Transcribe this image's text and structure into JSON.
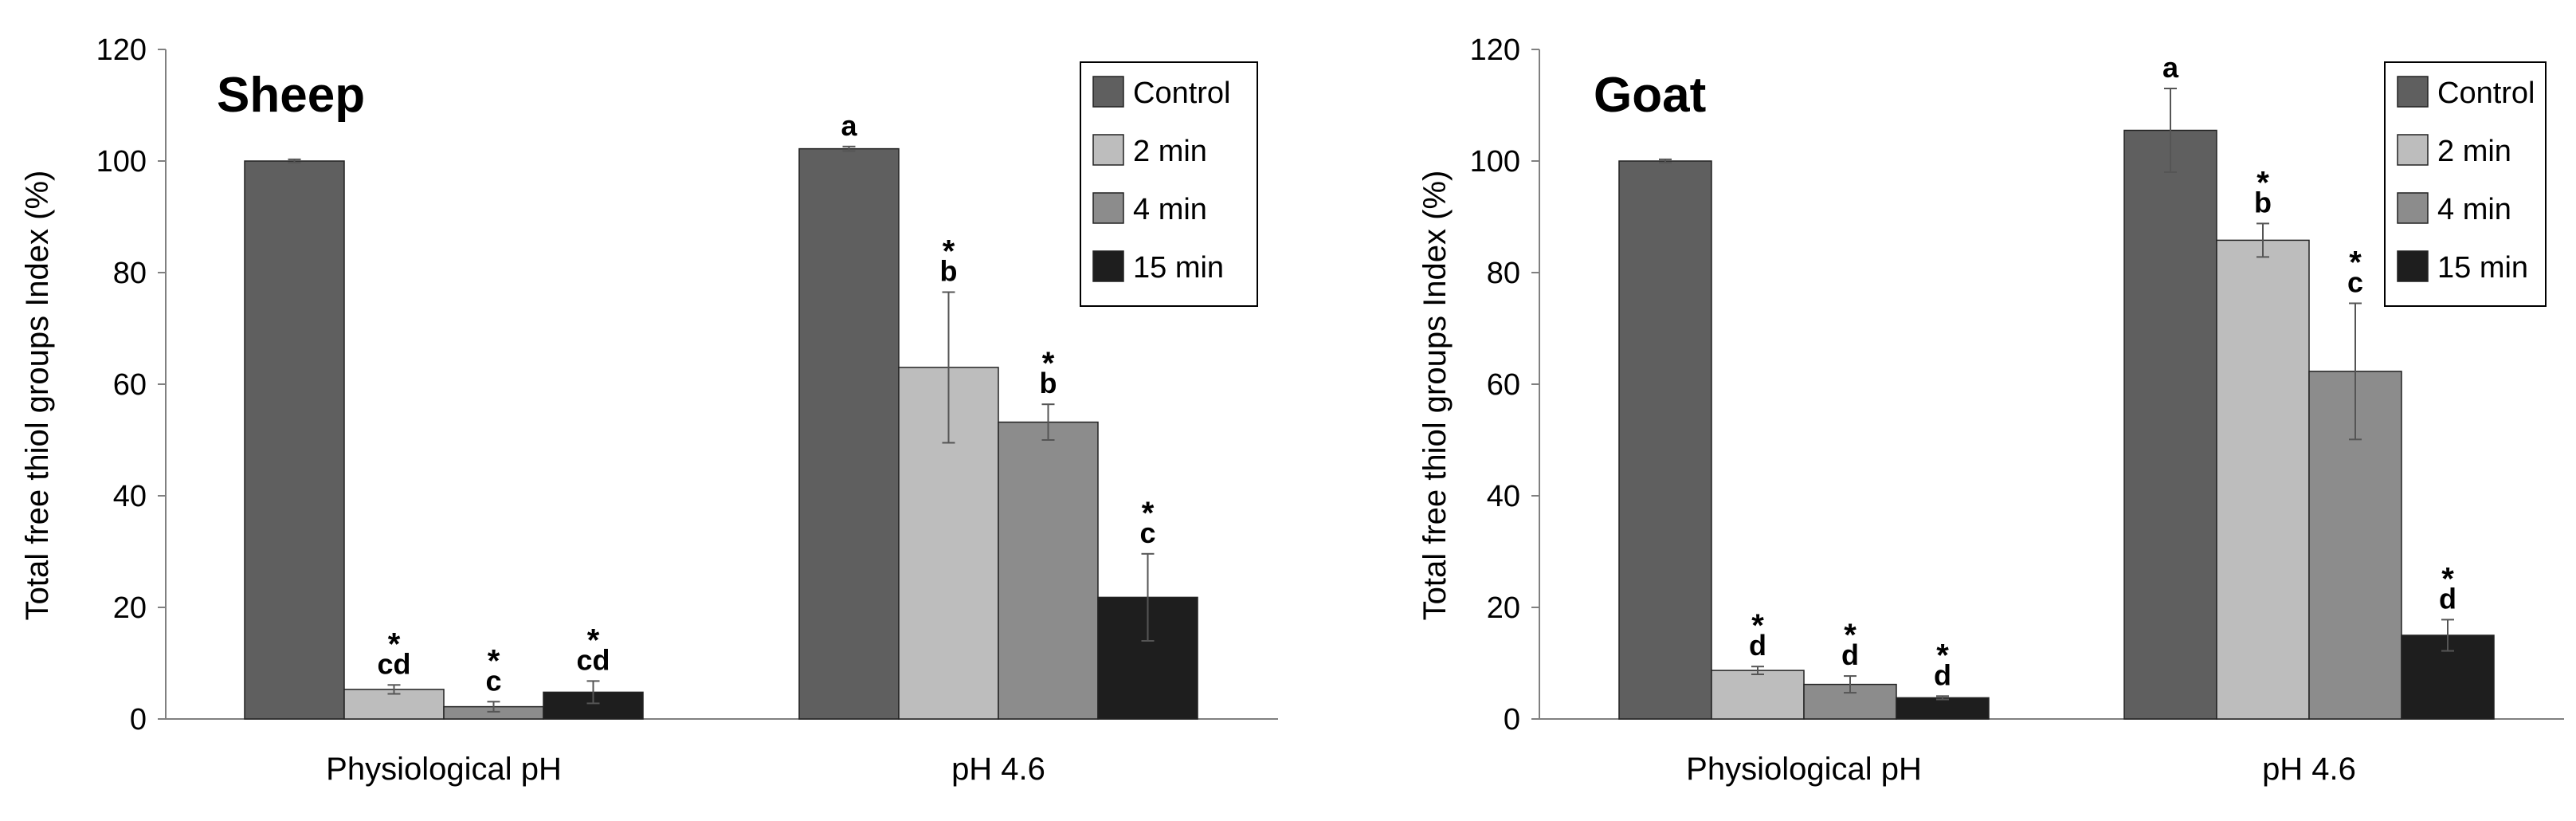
{
  "chart_data": [
    {
      "type": "bar",
      "title": "Sheep",
      "xlabel": "",
      "ylabel": "Total free thiol groups Index  (%)",
      "ylim": [
        0,
        120
      ],
      "yticks": [
        0,
        20,
        40,
        60,
        80,
        100,
        120
      ],
      "categories": [
        "Physiological pH",
        "pH 4.6"
      ],
      "legend_position": "top-right",
      "series": [
        {
          "name": "Control",
          "color": "#5f5f5f",
          "values": [
            100,
            102.2
          ],
          "errors": [
            0.3,
            0.4
          ],
          "labels": [
            "",
            "a"
          ],
          "stars": [
            false,
            false
          ]
        },
        {
          "name": "2 min",
          "color": "#bdbdbd",
          "values": [
            5.3,
            63
          ],
          "errors": [
            0.8,
            13.5
          ],
          "labels": [
            "cd",
            "b"
          ],
          "stars": [
            true,
            true
          ]
        },
        {
          "name": "4 min",
          "color": "#8c8c8c",
          "values": [
            2.2,
            53.2
          ],
          "errors": [
            0.9,
            3.2
          ],
          "labels": [
            "c",
            "b"
          ],
          "stars": [
            true,
            true
          ]
        },
        {
          "name": "15 min",
          "color": "#1e1e1e",
          "values": [
            4.8,
            21.8
          ],
          "errors": [
            2.0,
            7.8
          ],
          "labels": [
            "cd",
            "c"
          ],
          "stars": [
            true,
            true
          ]
        }
      ]
    },
    {
      "type": "bar",
      "title": "Goat",
      "xlabel": "",
      "ylabel": "Total free thiol groups Index  (%)",
      "ylim": [
        0,
        120
      ],
      "yticks": [
        0,
        20,
        40,
        60,
        80,
        100,
        120
      ],
      "categories": [
        "Physiological pH",
        "pH 4.6"
      ],
      "legend_position": "top-right",
      "series": [
        {
          "name": "Control",
          "color": "#5f5f5f",
          "values": [
            100,
            105.5
          ],
          "errors": [
            0.3,
            7.5
          ],
          "labels": [
            "",
            "a"
          ],
          "stars": [
            false,
            false
          ]
        },
        {
          "name": "2 min",
          "color": "#bdbdbd",
          "values": [
            8.7,
            85.8
          ],
          "errors": [
            0.7,
            3.0
          ],
          "labels": [
            "d",
            "b"
          ],
          "stars": [
            true,
            true
          ]
        },
        {
          "name": "4 min",
          "color": "#8c8c8c",
          "values": [
            6.2,
            62.3
          ],
          "errors": [
            1.5,
            12.2
          ],
          "labels": [
            "d",
            "c"
          ],
          "stars": [
            true,
            true
          ]
        },
        {
          "name": "15 min",
          "color": "#1e1e1e",
          "values": [
            3.8,
            15.0
          ],
          "errors": [
            0.3,
            2.8
          ],
          "labels": [
            "d",
            "d"
          ],
          "stars": [
            true,
            true
          ]
        }
      ]
    }
  ]
}
